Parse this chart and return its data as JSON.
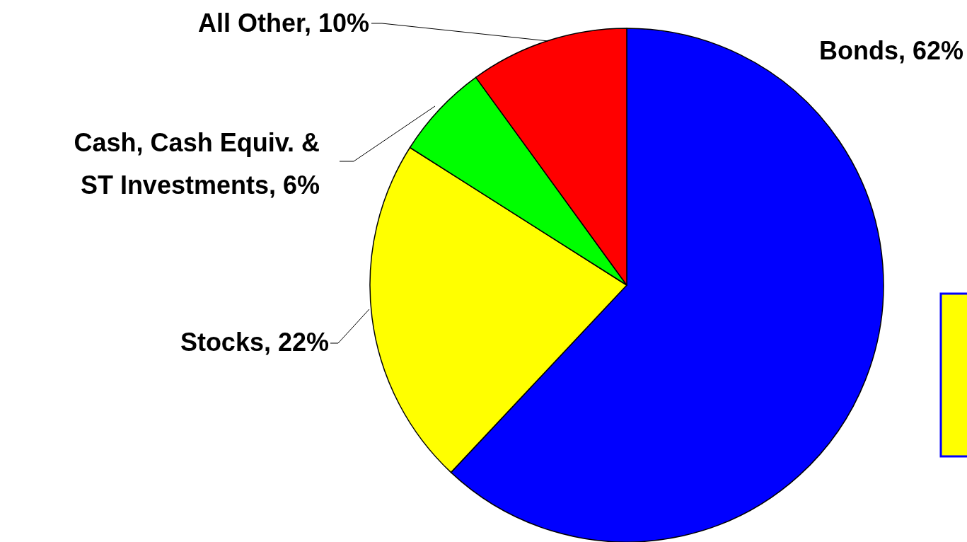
{
  "chart_data": {
    "type": "pie",
    "categories": [
      "Bonds, 62%",
      "Stocks, 22%",
      "Cash, Cash Equiv. & ST Investments, 6%",
      "All Other, 10%"
    ],
    "values": [
      62,
      22,
      6,
      10
    ],
    "colors": [
      "#0000ff",
      "#ffff00",
      "#00ff00",
      "#ff0000"
    ]
  }
}
